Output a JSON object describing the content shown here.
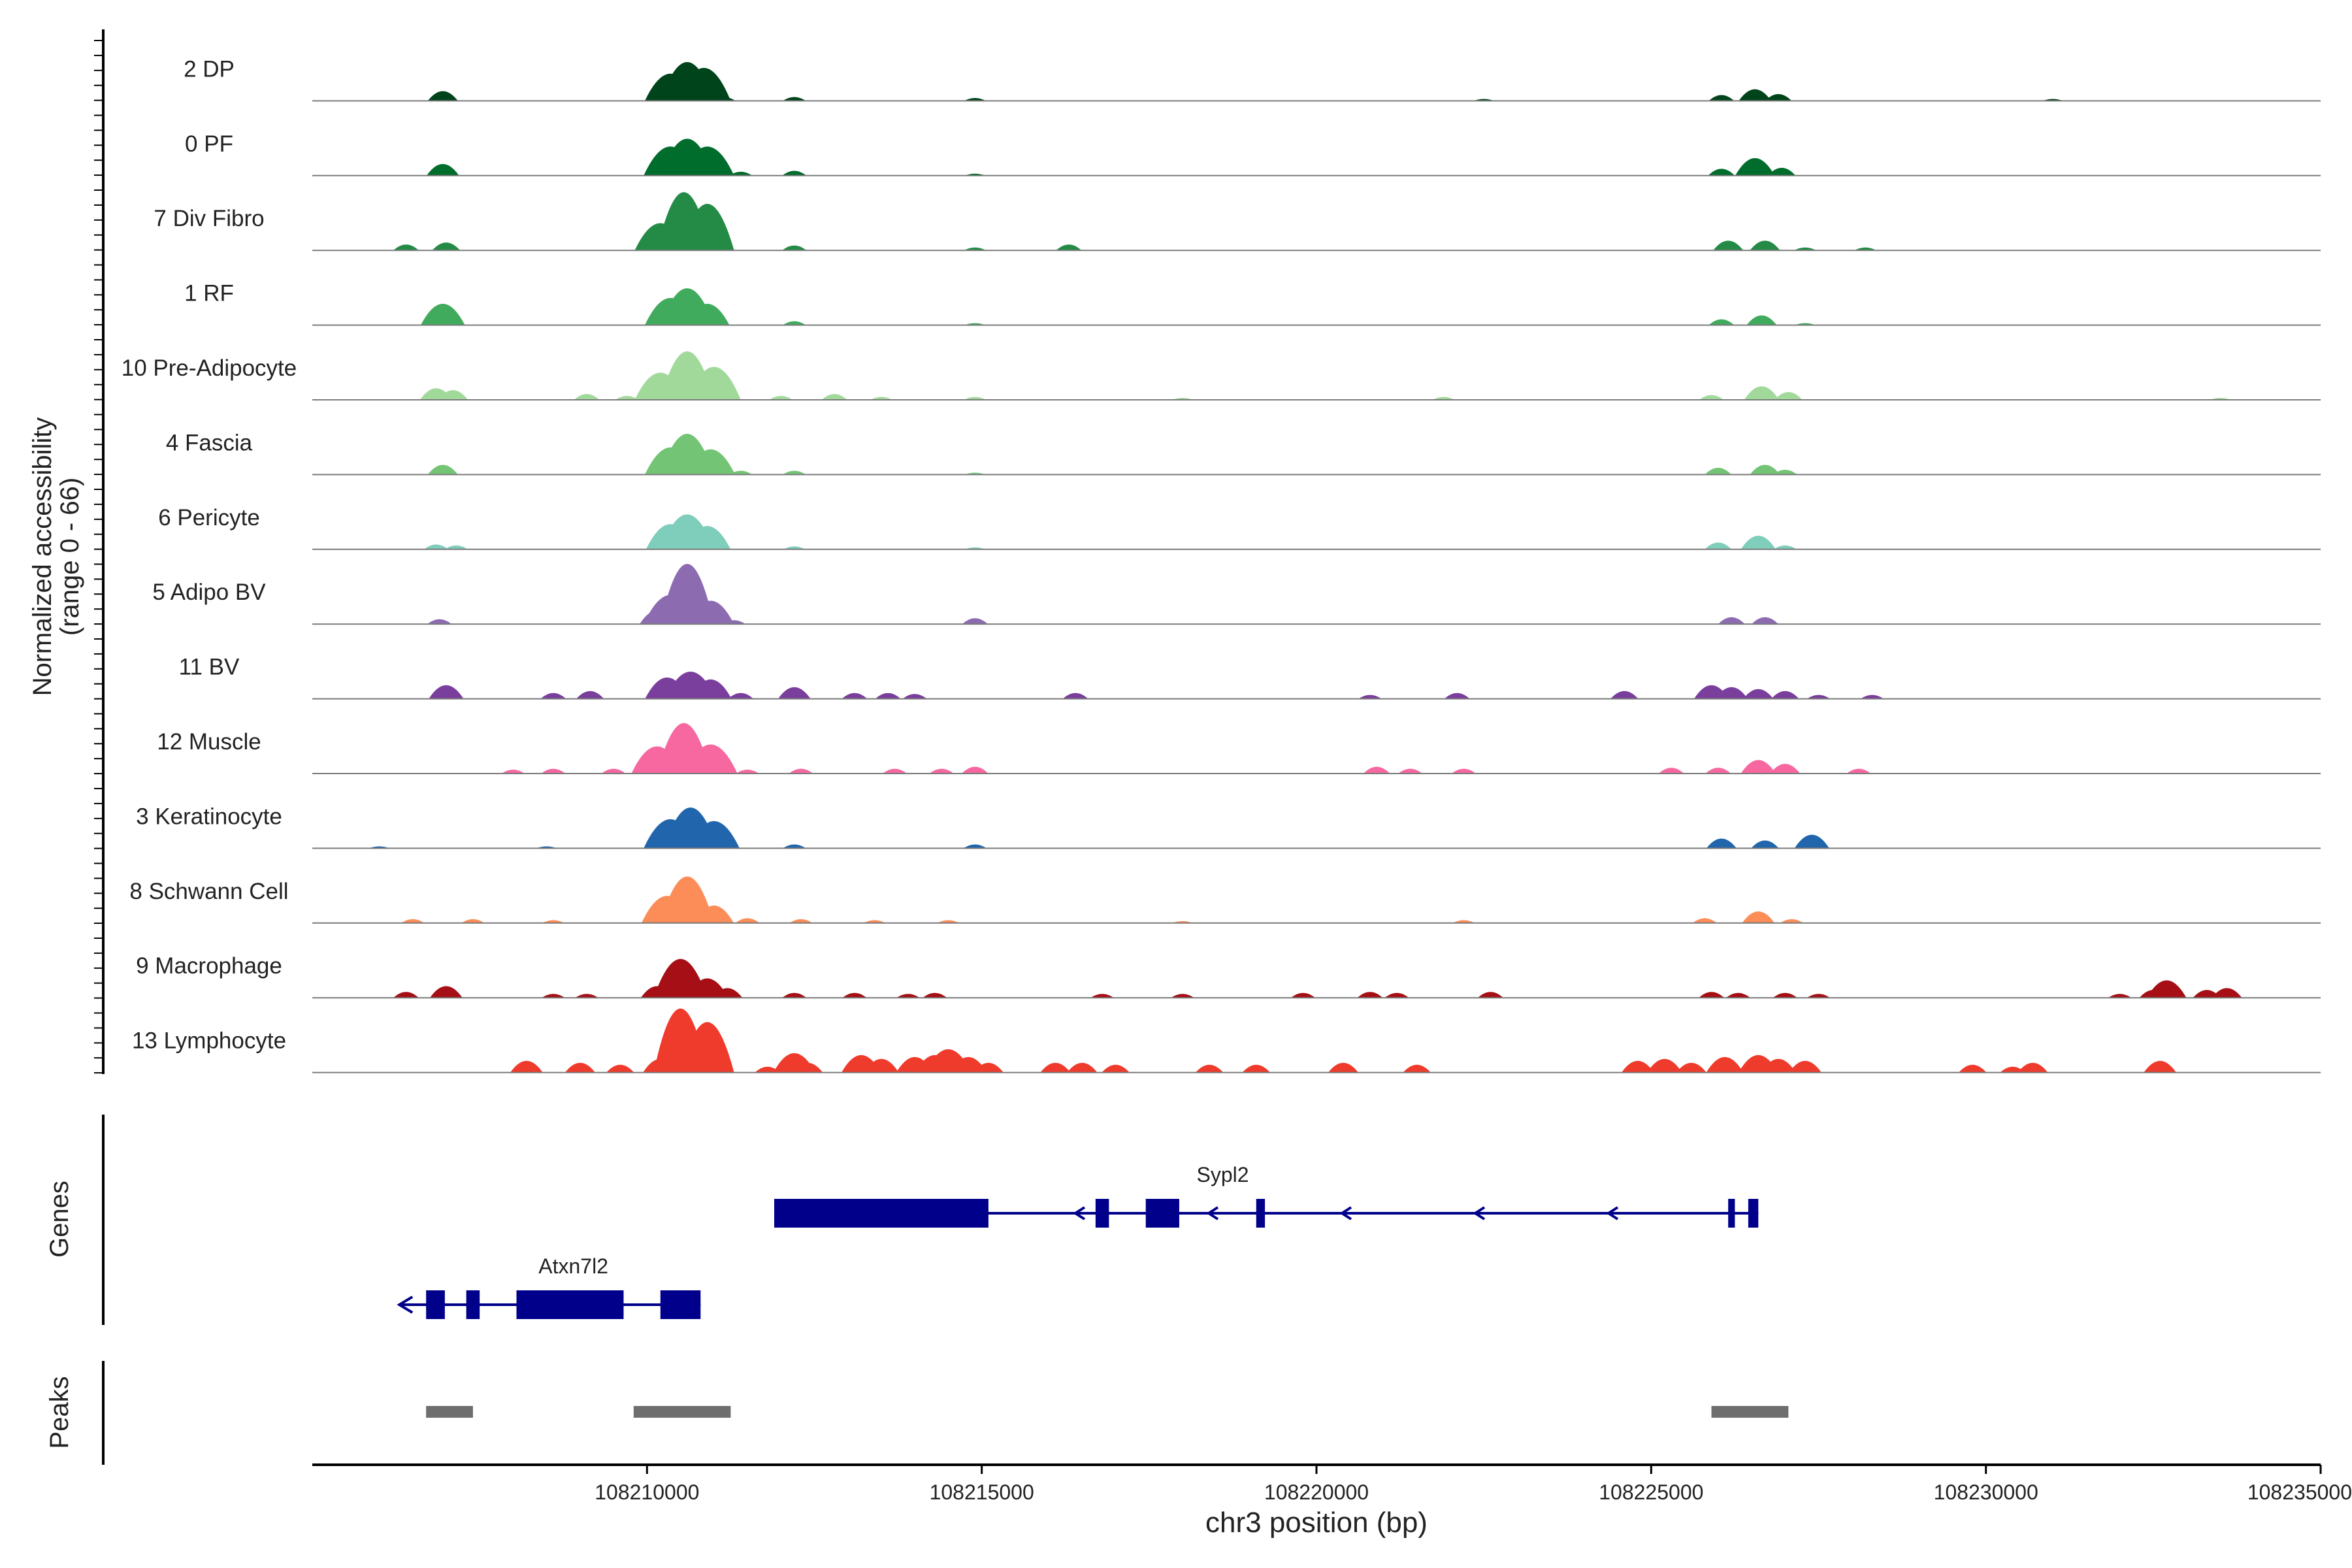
{
  "chart_data": {
    "type": "area",
    "title": "",
    "ylabel": "Normalized accessibility",
    "ylabel_range": "(range 0 - 66)",
    "ylim": [
      0,
      66
    ],
    "xlabel": "chr3 position (bp)",
    "xlim": [
      108205000,
      108235000
    ],
    "x_ticks": [
      108210000,
      108215000,
      108220000,
      108225000,
      108230000,
      108235000
    ],
    "x_tick_labels": [
      "108210000",
      "108215000",
      "108220000",
      "108225000",
      "108230000",
      "108235000"
    ],
    "tracks": [
      {
        "name": "2 DP",
        "color": "#00441b",
        "peaks": [
          [
            108206950,
            10
          ],
          [
            108210350,
            28
          ],
          [
            108210600,
            40
          ],
          [
            108210850,
            34
          ],
          [
            108211150,
            4
          ],
          [
            108212200,
            4
          ],
          [
            108214900,
            3
          ],
          [
            108226050,
            6
          ],
          [
            108226550,
            12
          ],
          [
            108226900,
            7
          ],
          [
            108222500,
            2
          ],
          [
            108231000,
            2
          ]
        ]
      },
      {
        "name": "0 PF",
        "color": "#006d2c",
        "peaks": [
          [
            108206950,
            12
          ],
          [
            108210350,
            30
          ],
          [
            108210600,
            38
          ],
          [
            108210900,
            30
          ],
          [
            108211400,
            4
          ],
          [
            108212200,
            5
          ],
          [
            108214900,
            2
          ],
          [
            108226050,
            7
          ],
          [
            108226550,
            18
          ],
          [
            108226950,
            8
          ]
        ]
      },
      {
        "name": "7 Div Fibro",
        "color": "#238b45",
        "peaks": [
          [
            108206400,
            6
          ],
          [
            108207000,
            8
          ],
          [
            108210200,
            28
          ],
          [
            108210550,
            60
          ],
          [
            108210900,
            48
          ],
          [
            108212200,
            5
          ],
          [
            108214900,
            3
          ],
          [
            108216300,
            6
          ],
          [
            108226150,
            10
          ],
          [
            108226700,
            10
          ],
          [
            108227300,
            3
          ],
          [
            108228200,
            3
          ]
        ]
      },
      {
        "name": "1 RF",
        "color": "#41ab5d",
        "peaks": [
          [
            108206950,
            22
          ],
          [
            108210350,
            28
          ],
          [
            108210600,
            38
          ],
          [
            108210900,
            22
          ],
          [
            108212200,
            4
          ],
          [
            108214900,
            2
          ],
          [
            108226050,
            6
          ],
          [
            108226650,
            10
          ],
          [
            108227300,
            2
          ]
        ]
      },
      {
        "name": "10 Pre-Adipocyte",
        "color": "#a1d99b",
        "peaks": [
          [
            108206850,
            12
          ],
          [
            108207100,
            10
          ],
          [
            108209100,
            6
          ],
          [
            108209700,
            4
          ],
          [
            108210200,
            28
          ],
          [
            108210600,
            50
          ],
          [
            108211000,
            34
          ],
          [
            108212000,
            4
          ],
          [
            108212800,
            6
          ],
          [
            108213500,
            3
          ],
          [
            108214900,
            3
          ],
          [
            108218000,
            2
          ],
          [
            108221900,
            3
          ],
          [
            108225900,
            5
          ],
          [
            108226650,
            14
          ],
          [
            108227050,
            8
          ],
          [
            108233500,
            2
          ]
        ]
      },
      {
        "name": "4 Fascia",
        "color": "#74c476",
        "peaks": [
          [
            108206950,
            10
          ],
          [
            108210350,
            28
          ],
          [
            108210600,
            42
          ],
          [
            108210950,
            26
          ],
          [
            108211400,
            4
          ],
          [
            108212200,
            4
          ],
          [
            108214900,
            2
          ],
          [
            108226000,
            7
          ],
          [
            108226700,
            10
          ],
          [
            108227000,
            5
          ]
        ]
      },
      {
        "name": "6 Pericyte",
        "color": "#7fcdbb",
        "peaks": [
          [
            108206850,
            5
          ],
          [
            108207150,
            4
          ],
          [
            108210350,
            26
          ],
          [
            108210600,
            36
          ],
          [
            108210900,
            24
          ],
          [
            108212200,
            3
          ],
          [
            108214900,
            2
          ],
          [
            108226000,
            7
          ],
          [
            108226600,
            14
          ],
          [
            108227000,
            4
          ]
        ]
      },
      {
        "name": "5 Adipo BV",
        "color": "#8c6bb1",
        "peaks": [
          [
            108206900,
            5
          ],
          [
            108210150,
            14
          ],
          [
            108210350,
            30
          ],
          [
            108210600,
            62
          ],
          [
            108210950,
            24
          ],
          [
            108211300,
            4
          ],
          [
            108214900,
            6
          ],
          [
            108226200,
            7
          ],
          [
            108226700,
            7
          ]
        ]
      },
      {
        "name": "11 BV",
        "color": "#7a3e9d",
        "peaks": [
          [
            108207000,
            14
          ],
          [
            108208600,
            6
          ],
          [
            108209150,
            8
          ],
          [
            108210300,
            22
          ],
          [
            108210650,
            28
          ],
          [
            108210950,
            20
          ],
          [
            108211400,
            6
          ],
          [
            108212200,
            12
          ],
          [
            108213100,
            6
          ],
          [
            108213600,
            6
          ],
          [
            108214000,
            5
          ],
          [
            108216400,
            6
          ],
          [
            108220800,
            4
          ],
          [
            108222100,
            6
          ],
          [
            108224600,
            8
          ],
          [
            108225900,
            14
          ],
          [
            108226200,
            12
          ],
          [
            108226600,
            10
          ],
          [
            108227000,
            8
          ],
          [
            108227500,
            4
          ],
          [
            108228300,
            4
          ]
        ]
      },
      {
        "name": "12 Muscle",
        "color": "#f768a1",
        "peaks": [
          [
            108208000,
            4
          ],
          [
            108208600,
            5
          ],
          [
            108209500,
            5
          ],
          [
            108210150,
            28
          ],
          [
            108210550,
            52
          ],
          [
            108210950,
            30
          ],
          [
            108211500,
            4
          ],
          [
            108212300,
            5
          ],
          [
            108213700,
            5
          ],
          [
            108214400,
            5
          ],
          [
            108214900,
            7
          ],
          [
            108220900,
            7
          ],
          [
            108221400,
            5
          ],
          [
            108222200,
            5
          ],
          [
            108225300,
            6
          ],
          [
            108226000,
            6
          ],
          [
            108226600,
            14
          ],
          [
            108227000,
            10
          ],
          [
            108228100,
            5
          ]
        ]
      },
      {
        "name": "3 Keratinocyte",
        "color": "#2166ac",
        "peaks": [
          [
            108206000,
            2
          ],
          [
            108208500,
            2
          ],
          [
            108210350,
            30
          ],
          [
            108210650,
            42
          ],
          [
            108211000,
            28
          ],
          [
            108212200,
            4
          ],
          [
            108214900,
            4
          ],
          [
            108226050,
            10
          ],
          [
            108226700,
            8
          ],
          [
            108227400,
            14
          ]
        ]
      },
      {
        "name": "8 Schwann Cell",
        "color": "#fc8d59",
        "peaks": [
          [
            108206500,
            4
          ],
          [
            108207400,
            4
          ],
          [
            108208600,
            3
          ],
          [
            108210300,
            28
          ],
          [
            108210600,
            48
          ],
          [
            108211000,
            18
          ],
          [
            108211500,
            5
          ],
          [
            108212300,
            4
          ],
          [
            108213400,
            3
          ],
          [
            108214500,
            3
          ],
          [
            108218000,
            2
          ],
          [
            108222200,
            3
          ],
          [
            108225800,
            5
          ],
          [
            108226600,
            12
          ],
          [
            108227100,
            4
          ]
        ]
      },
      {
        "name": "9 Macrophage",
        "color": "#a50f15",
        "peaks": [
          [
            108206400,
            6
          ],
          [
            108207000,
            12
          ],
          [
            108208600,
            4
          ],
          [
            108209100,
            4
          ],
          [
            108210150,
            12
          ],
          [
            108210500,
            40
          ],
          [
            108210900,
            20
          ],
          [
            108211200,
            10
          ],
          [
            108212200,
            5
          ],
          [
            108213100,
            5
          ],
          [
            108213900,
            4
          ],
          [
            108214300,
            5
          ],
          [
            108216800,
            4
          ],
          [
            108218000,
            4
          ],
          [
            108219800,
            5
          ],
          [
            108220800,
            6
          ],
          [
            108221200,
            5
          ],
          [
            108222600,
            6
          ],
          [
            108225900,
            6
          ],
          [
            108226300,
            5
          ],
          [
            108227000,
            5
          ],
          [
            108227500,
            4
          ],
          [
            108232000,
            4
          ],
          [
            108232500,
            8
          ],
          [
            108232700,
            18
          ],
          [
            108233300,
            8
          ],
          [
            108233600,
            10
          ]
        ]
      },
      {
        "name": "13 Lymphocyte",
        "color": "#ef3b2c",
        "peaks": [
          [
            108208200,
            12
          ],
          [
            108209000,
            10
          ],
          [
            108209600,
            8
          ],
          [
            108210200,
            14
          ],
          [
            108210500,
            66
          ],
          [
            108210900,
            52
          ],
          [
            108211800,
            6
          ],
          [
            108212200,
            20
          ],
          [
            108212400,
            10
          ],
          [
            108213200,
            18
          ],
          [
            108213500,
            14
          ],
          [
            108214000,
            16
          ],
          [
            108214300,
            18
          ],
          [
            108214500,
            24
          ],
          [
            108214800,
            16
          ],
          [
            108215100,
            10
          ],
          [
            108216100,
            10
          ],
          [
            108216500,
            10
          ],
          [
            108217000,
            8
          ],
          [
            108218400,
            8
          ],
          [
            108219100,
            8
          ],
          [
            108220400,
            10
          ],
          [
            108221500,
            8
          ],
          [
            108224800,
            12
          ],
          [
            108225200,
            14
          ],
          [
            108225600,
            10
          ],
          [
            108226100,
            16
          ],
          [
            108226600,
            18
          ],
          [
            108226900,
            14
          ],
          [
            108227300,
            12
          ],
          [
            108229800,
            8
          ],
          [
            108230400,
            6
          ],
          [
            108230700,
            10
          ],
          [
            108232600,
            12
          ]
        ]
      }
    ],
    "genes_label": "Genes",
    "genes": [
      {
        "name": "Sypl2",
        "strand": "-",
        "start": 108211900,
        "end": 108226600,
        "exons": [
          [
            108211900,
            108215100
          ],
          [
            108216700,
            108216900
          ],
          [
            108217450,
            108217950
          ],
          [
            108219100,
            108219230
          ],
          [
            108226150,
            108226250
          ],
          [
            108226450,
            108226600
          ]
        ]
      },
      {
        "name": "Atxn7l2",
        "strand": "-",
        "start": 108206300,
        "end": 108210800,
        "exons": [
          [
            108206700,
            108206980
          ],
          [
            108207300,
            108207500
          ],
          [
            108208050,
            108209650
          ],
          [
            108210200,
            108210800
          ]
        ]
      }
    ],
    "peaks_label": "Peaks",
    "peak_regions": [
      [
        108206700,
        108207400
      ],
      [
        108209800,
        108211250
      ],
      [
        108225900,
        108227050
      ]
    ]
  }
}
